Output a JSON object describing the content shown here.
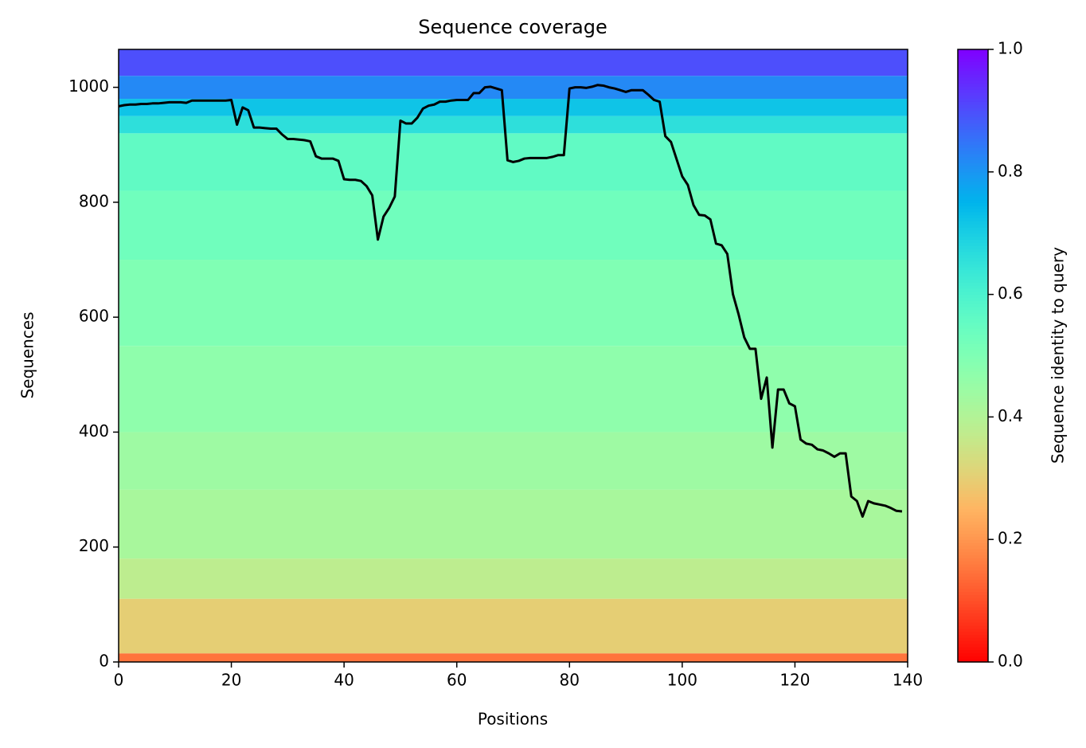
{
  "chart_data": {
    "type": "line",
    "title": "Sequence coverage",
    "x_label": "Positions",
    "y_label": "Sequences",
    "xlim": [
      0,
      140
    ],
    "xticks": [
      0,
      20,
      40,
      60,
      80,
      100,
      120,
      140
    ],
    "ylim": [
      0,
      1066
    ],
    "yticks": [
      0,
      200,
      400,
      600,
      800,
      1000
    ],
    "heatmap": {
      "y": [
        0,
        15,
        110,
        180,
        300,
        400,
        550,
        700,
        820,
        920,
        950,
        980,
        1020,
        1066
      ],
      "identity": [
        0.15,
        0.3,
        0.38,
        0.42,
        0.44,
        0.47,
        0.5,
        0.53,
        0.56,
        0.66,
        0.72,
        0.82,
        0.9
      ]
    },
    "colormap": "rainbow_r",
    "clim": [
      0,
      1
    ],
    "colorbar_label": "Sequence identity to query",
    "colorbar_ticks": [
      {
        "value": 0,
        "label": "0.0"
      },
      {
        "value": 0.2,
        "label": "0.2"
      },
      {
        "value": 0.4,
        "label": "0.4"
      },
      {
        "value": 0.6,
        "label": "0.6"
      },
      {
        "value": 0.8,
        "label": "0.8"
      },
      {
        "value": 1,
        "label": "1.0"
      }
    ],
    "series": [
      {
        "name": "coverage",
        "color": "#000000",
        "x": [
          0,
          1,
          2,
          3,
          4,
          5,
          6,
          7,
          8,
          9,
          10,
          11,
          12,
          13,
          14,
          15,
          16,
          17,
          18,
          19,
          20,
          21,
          22,
          23,
          24,
          25,
          26,
          27,
          28,
          29,
          30,
          31,
          32,
          33,
          34,
          35,
          36,
          37,
          38,
          39,
          40,
          41,
          42,
          43,
          44,
          45,
          46,
          47,
          48,
          49,
          50,
          51,
          52,
          53,
          54,
          55,
          56,
          57,
          58,
          59,
          60,
          61,
          62,
          63,
          64,
          65,
          66,
          67,
          68,
          69,
          70,
          71,
          72,
          73,
          74,
          75,
          76,
          77,
          78,
          79,
          80,
          81,
          82,
          83,
          84,
          85,
          86,
          87,
          88,
          89,
          90,
          91,
          92,
          93,
          94,
          95,
          96,
          97,
          98,
          99,
          100,
          101,
          102,
          103,
          104,
          105,
          106,
          107,
          108,
          109,
          110,
          111,
          112,
          113,
          114,
          115,
          116,
          117,
          118,
          119,
          120,
          121,
          122,
          123,
          124,
          125,
          126,
          127,
          128,
          129,
          130,
          131,
          132,
          133,
          134,
          135,
          136,
          137,
          138,
          139
        ],
        "values": [
          967,
          969,
          970,
          970,
          971,
          971,
          972,
          972,
          973,
          974,
          974,
          974,
          973,
          977,
          977,
          977,
          977,
          977,
          977,
          977,
          978,
          935,
          965,
          960,
          930,
          930,
          929,
          928,
          928,
          918,
          910,
          910,
          909,
          908,
          906,
          880,
          876,
          876,
          876,
          872,
          840,
          839,
          839,
          837,
          828,
          812,
          735,
          775,
          790,
          810,
          942,
          937,
          937,
          947,
          963,
          968,
          970,
          975,
          975,
          977,
          978,
          978,
          978,
          990,
          990,
          1000,
          1001,
          998,
          995,
          873,
          870,
          872,
          876,
          877,
          877,
          877,
          877,
          879,
          882,
          882,
          998,
          1000,
          1000,
          999,
          1001,
          1004,
          1003,
          1000,
          998,
          995,
          992,
          995,
          995,
          995,
          987,
          978,
          975,
          915,
          905,
          875,
          845,
          830,
          795,
          778,
          777,
          770,
          728,
          725,
          710,
          640,
          605,
          565,
          545,
          545,
          458,
          495,
          373,
          474,
          474,
          450,
          445,
          387,
          380,
          378,
          370,
          368,
          363,
          357,
          363,
          363,
          288,
          280,
          253,
          280,
          276,
          274,
          272,
          268,
          263,
          262
        ]
      }
    ]
  }
}
